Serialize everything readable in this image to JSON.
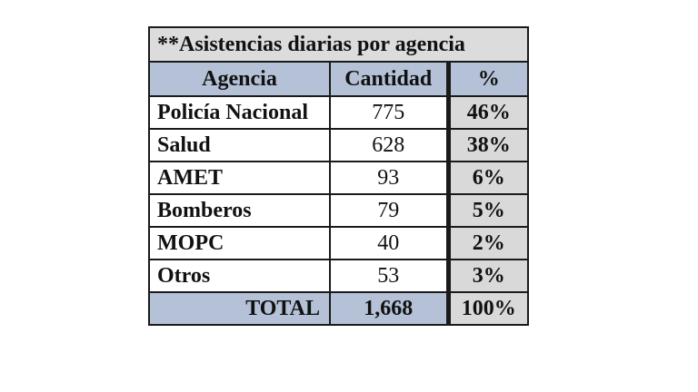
{
  "table": {
    "title": "**Asistencias diarias por agencia",
    "headers": {
      "agency": "Agencia",
      "quantity": "Cantidad",
      "percent": "%"
    },
    "rows": [
      {
        "agency": "Policía Nacional",
        "quantity": "775",
        "percent": "46%"
      },
      {
        "agency": "Salud",
        "quantity": "628",
        "percent": "38%"
      },
      {
        "agency": "AMET",
        "quantity": "93",
        "percent": "6%"
      },
      {
        "agency": "Bomberos",
        "quantity": "79",
        "percent": "5%"
      },
      {
        "agency": "MOPC",
        "quantity": "40",
        "percent": "2%"
      },
      {
        "agency": "Otros",
        "quantity": "53",
        "percent": "3%"
      }
    ],
    "total": {
      "label": "TOTAL",
      "quantity": "1,668",
      "percent": "100%"
    }
  },
  "colors": {
    "header_fill": "#b4c1d6",
    "title_fill": "#dcdcdc",
    "percent_fill": "#d9d9d9",
    "border": "#1a1a1a"
  }
}
